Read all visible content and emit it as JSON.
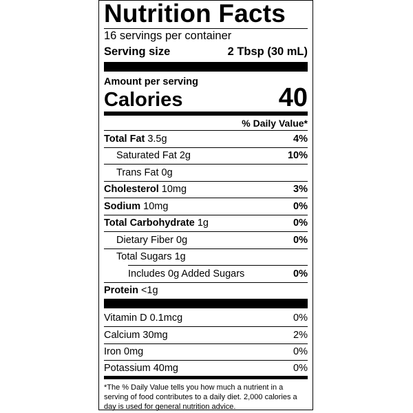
{
  "title": "Nutrition Facts",
  "servings": "16 servings per container",
  "serving_size": {
    "label": "Serving size",
    "value": "2 Tbsp (30 mL)"
  },
  "amount_per_serving": "Amount per serving",
  "calories": {
    "label": "Calories",
    "value": 40
  },
  "daily_value_header": "% Daily Value*",
  "nutrients": [
    {
      "name": "Total Fat",
      "amount": "3.5g",
      "dv": "4%"
    },
    {
      "name": "Saturated Fat",
      "amount": "2g",
      "dv": "10%"
    },
    {
      "name": "Trans Fat",
      "amount": "0g"
    },
    {
      "name": "Cholesterol",
      "amount": "10mg",
      "dv": "3%"
    },
    {
      "name": "Sodium",
      "amount": "10mg",
      "dv": "0%"
    },
    {
      "name": "Total Carbohydrate",
      "amount": "1g",
      "dv": "0%"
    },
    {
      "name": "Dietary Fiber",
      "amount": "0g",
      "dv": "0%"
    },
    {
      "name": "Total Sugars",
      "amount": "1g"
    },
    {
      "name": "Includes 0g Added Sugars",
      "dv": "0%"
    },
    {
      "name": "Protein",
      "amount": "<1g"
    }
  ],
  "vitamins": [
    {
      "name": "Vitamin D",
      "amount": "0.1mcg",
      "dv": "0%"
    },
    {
      "name": "Calcium",
      "amount": "30mg",
      "dv": "2%"
    },
    {
      "name": "Iron",
      "amount": "0mg",
      "dv": "0%"
    },
    {
      "name": "Potassium",
      "amount": "40mg",
      "dv": "0%"
    }
  ],
  "footnote": "*The % Daily Value tells you how much a nutrient in a serving of food contributes to a daily diet. 2,000 calories a day is used for general nutrition advice."
}
